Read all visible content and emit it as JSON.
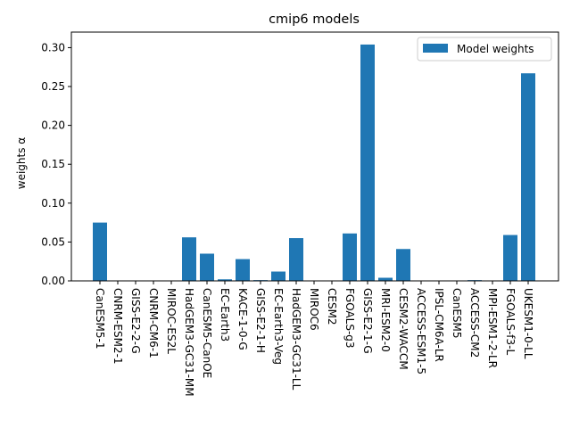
{
  "chart_data": {
    "type": "bar",
    "title": "cmip6 models",
    "xlabel": "",
    "ylabel": "weights α",
    "ylim": [
      0,
      0.32
    ],
    "yticks": [
      "0.00",
      "0.05",
      "0.10",
      "0.15",
      "0.20",
      "0.25",
      "0.30"
    ],
    "grid": false,
    "legend_position": "top-right",
    "categories": [
      "CanESM5-1",
      "CNRM-ESM2-1",
      "GISS-E2-2-G",
      "CNRM-CM6-1",
      "MIROC-ES2L",
      "HadGEM3-GC31-MM",
      "CanESM5-CanOE",
      "EC-Earth3",
      "KACE-1-0-G",
      "GISS-E2-1-H",
      "EC-Earth3-Veg",
      "HadGEM3-GC31-LL",
      "MIROC6",
      "CESM2",
      "FGOALS-g3",
      "GISS-E2-1-G",
      "MRI-ESM2-0",
      "CESM2-WACCM",
      "ACCESS-ESM1-5",
      "IPSL-CM6A-LR",
      "CanESM5",
      "ACCESS-CM2",
      "MPI-ESM1-2-LR",
      "FGOALS-f3-L",
      "UKESM1-0-LL"
    ],
    "series": [
      {
        "name": "Model weights",
        "color": "#1f77b4",
        "values": [
          0.075,
          0.0,
          0.0,
          0.0,
          0.0,
          0.056,
          0.035,
          0.002,
          0.028,
          0.001,
          0.012,
          0.055,
          0.0,
          0.0,
          0.061,
          0.304,
          0.004,
          0.041,
          0.0,
          0.0,
          0.0,
          0.001,
          0.0,
          0.059,
          0.267
        ]
      }
    ]
  }
}
